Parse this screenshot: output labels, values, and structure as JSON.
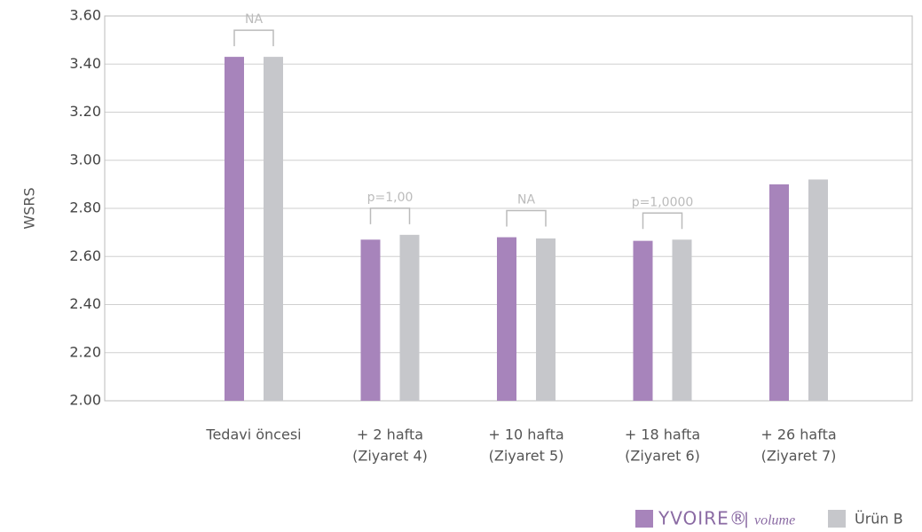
{
  "chart_data": {
    "type": "bar",
    "y_label": "WSRS",
    "categories": [
      [
        "Tedavi öncesi"
      ],
      [
        "+ 2 hafta",
        "(Ziyaret 4)"
      ],
      [
        "+ 10 hafta",
        "(Ziyaret 5)"
      ],
      [
        "+ 18 hafta",
        "(Ziyaret 6)"
      ],
      [
        "+ 26 hafta",
        "(Ziyaret 7)"
      ]
    ],
    "series": [
      {
        "name": "YVOIRE®",
        "color": "#a784bb",
        "values": [
          3.43,
          2.67,
          2.68,
          2.665,
          2.9
        ]
      },
      {
        "name": "Ürün B",
        "color": "#c6c7cb",
        "values": [
          3.43,
          2.69,
          2.675,
          2.67,
          2.92
        ]
      }
    ],
    "legend_note": "volume",
    "annotations": [
      "NA",
      "p=1,00",
      "NA",
      "p=1,0000",
      null
    ],
    "ylim": [
      2.0,
      3.6
    ],
    "yticks": [
      {
        "value": 2.0,
        "label": "2.00"
      },
      {
        "value": 2.2,
        "label": "2.20"
      },
      {
        "value": 2.4,
        "label": "2.40"
      },
      {
        "value": 2.6,
        "label": "2.60"
      },
      {
        "value": 2.8,
        "label": "2.80"
      },
      {
        "value": 3.0,
        "label": "3.00"
      },
      {
        "value": 3.2,
        "label": "3.20"
      },
      {
        "value": 3.4,
        "label": "3.40"
      },
      {
        "value": 3.6,
        "label": "3.60"
      }
    ],
    "grid": true,
    "legend": "bottom-right"
  }
}
